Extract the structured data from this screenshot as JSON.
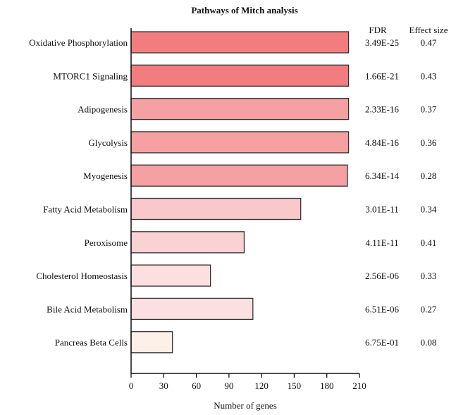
{
  "chart_data": {
    "type": "bar",
    "orientation": "horizontal",
    "title": "Pathways of Mitch analysis",
    "xlabel": "Number of genes",
    "ylabel": "",
    "xlim": [
      0,
      210
    ],
    "xticks": [
      "0",
      "30",
      "60",
      "90",
      "120",
      "150",
      "180",
      "210"
    ],
    "categories": [
      "Oxidative Phosphorylation",
      "MTORC1 Signaling",
      "Adipogenesis",
      "Glycolysis",
      "Myogenesis",
      "Fatty Acid Metabolism",
      "Peroxisome",
      "Cholesterol Homeostasis",
      "Bile Acid Metabolism",
      "Pancreas Beta Cells"
    ],
    "values": [
      200,
      200,
      200,
      200,
      199,
      156,
      104,
      73,
      112,
      38
    ],
    "colors": [
      "#f27d80",
      "#f27d80",
      "#f5a0a2",
      "#f5a0a2",
      "#f5a0a2",
      "#f8c8ca",
      "#fad2d3",
      "#fce0e1",
      "#fce0e1",
      "#fdf0e8"
    ],
    "table": {
      "headers": [
        "FDR",
        "Effect size"
      ],
      "fdr": [
        "3.49E-25",
        "1.66E-21",
        "2.33E-16",
        "4.84E-16",
        "6.34E-14",
        "3.01E-11",
        "4.11E-11",
        "2.56E-06",
        "6.51E-06",
        "6.75E-01"
      ],
      "effect_size": [
        "0.47",
        "0.43",
        "0.37",
        "0.36",
        "0.28",
        "0.34",
        "0.41",
        "0.33",
        "0.27",
        "0.08"
      ]
    }
  }
}
